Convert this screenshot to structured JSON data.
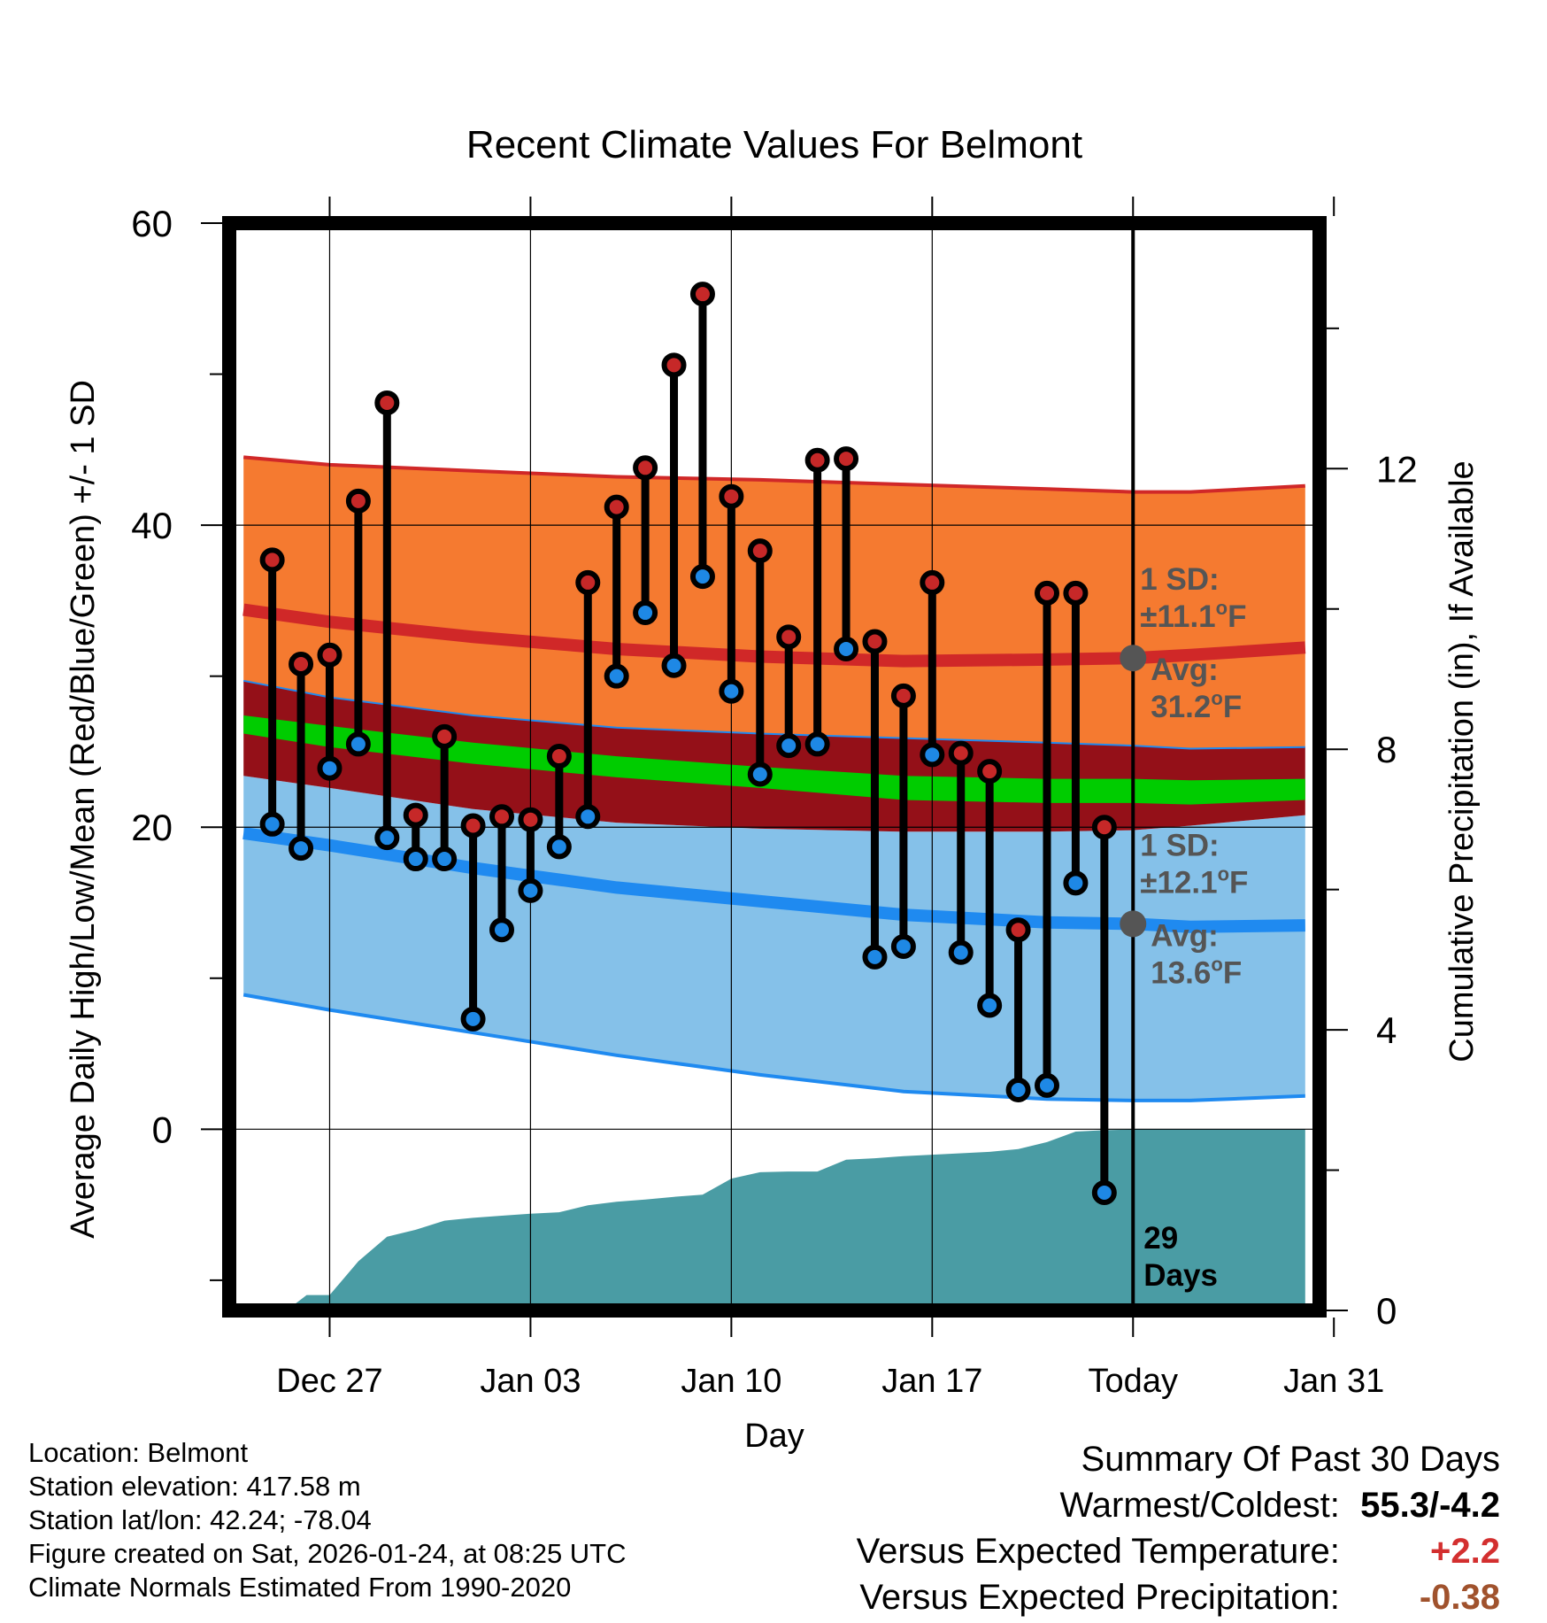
{
  "chart_data": {
    "type": "line",
    "title": "Recent Climate Values For Belmont",
    "xlabel": "Day",
    "ylabel": "Average Daily High/Low/Mean (Red/Blue/Green) +/- 1 SD",
    "y2label": "Cumulative Precipitation (in), If Available",
    "xlim": [
      -3.5,
      34.5
    ],
    "ylim": [
      -12,
      60
    ],
    "y2lim": [
      0,
      15.5
    ],
    "x_ticks": [
      {
        "x": 0,
        "label": "Dec 27"
      },
      {
        "x": 7,
        "label": "Jan 03"
      },
      {
        "x": 14,
        "label": "Jan 10"
      },
      {
        "x": 21,
        "label": "Jan 17"
      },
      {
        "x": 28,
        "label": "Today"
      },
      {
        "x": 35,
        "label": "Jan 31"
      }
    ],
    "y_ticks": [
      0,
      20,
      40,
      60
    ],
    "y2_ticks": [
      0,
      4,
      8,
      12
    ],
    "today_x": 28,
    "grid": true,
    "observed_days": [
      {
        "x": -2,
        "high": 37.7,
        "low": 20.2
      },
      {
        "x": -1,
        "high": 30.8,
        "low": 18.6
      },
      {
        "x": 0,
        "high": 31.4,
        "low": 23.9
      },
      {
        "x": 1,
        "high": 41.6,
        "low": 25.5
      },
      {
        "x": 2,
        "high": 48.1,
        "low": 19.3
      },
      {
        "x": 3,
        "high": 20.8,
        "low": 17.9
      },
      {
        "x": 4,
        "high": 26.0,
        "low": 17.9
      },
      {
        "x": 5,
        "high": 20.1,
        "low": 7.3
      },
      {
        "x": 6,
        "high": 20.7,
        "low": 13.2
      },
      {
        "x": 7,
        "high": 20.5,
        "low": 15.8
      },
      {
        "x": 8,
        "high": 24.7,
        "low": 18.7
      },
      {
        "x": 9,
        "high": 36.2,
        "low": 20.7
      },
      {
        "x": 10,
        "high": 41.2,
        "low": 30.0
      },
      {
        "x": 11,
        "high": 43.8,
        "low": 34.2
      },
      {
        "x": 12,
        "high": 50.6,
        "low": 30.7
      },
      {
        "x": 13,
        "high": 55.3,
        "low": 36.6
      },
      {
        "x": 14,
        "high": 41.9,
        "low": 29.0
      },
      {
        "x": 15,
        "high": 38.3,
        "low": 23.5
      },
      {
        "x": 16,
        "high": 32.6,
        "low": 25.4
      },
      {
        "x": 17,
        "high": 44.3,
        "low": 25.5
      },
      {
        "x": 18,
        "high": 44.4,
        "low": 31.8
      },
      {
        "x": 19,
        "high": 32.3,
        "low": 11.4
      },
      {
        "x": 20,
        "high": 28.7,
        "low": 12.1
      },
      {
        "x": 21,
        "high": 36.2,
        "low": 24.8
      },
      {
        "x": 22,
        "high": 24.9,
        "low": 11.7
      },
      {
        "x": 23,
        "high": 23.7,
        "low": 8.2
      },
      {
        "x": 24,
        "high": 13.2,
        "low": 2.6
      },
      {
        "x": 25,
        "high": 35.5,
        "low": 2.9
      },
      {
        "x": 26,
        "high": 35.5,
        "low": 16.3
      },
      {
        "x": 27,
        "high": 20.0,
        "low": -4.2
      }
    ],
    "normals": {
      "x": [
        -3,
        0,
        5,
        10,
        15,
        20,
        25,
        28,
        30,
        34
      ],
      "high_mean": [
        34.4,
        33.6,
        32.6,
        31.8,
        31.3,
        31.0,
        31.1,
        31.2,
        31.4,
        31.9
      ],
      "high_upper": [
        44.5,
        44.0,
        43.6,
        43.2,
        43.0,
        42.7,
        42.4,
        42.2,
        42.2,
        42.6
      ],
      "high_lower": [
        29.7,
        28.6,
        27.4,
        26.6,
        26.2,
        25.9,
        25.6,
        25.4,
        25.2,
        25.3
      ],
      "mean_mean": [
        26.8,
        26.0,
        24.9,
        24.0,
        23.3,
        22.6,
        22.4,
        22.4,
        22.3,
        22.5
      ],
      "mean_upper": [
        27.4,
        26.7,
        25.6,
        24.7,
        24.0,
        23.4,
        23.2,
        23.2,
        23.1,
        23.2
      ],
      "mean_lower": [
        26.2,
        25.3,
        24.2,
        23.3,
        22.6,
        21.8,
        21.6,
        21.6,
        21.5,
        21.8
      ],
      "low_mean": [
        19.6,
        18.8,
        17.3,
        16.0,
        15.1,
        14.2,
        13.7,
        13.6,
        13.4,
        13.5
      ],
      "low_upper": [
        23.4,
        22.6,
        21.2,
        20.3,
        19.9,
        19.7,
        19.7,
        19.8,
        20.1,
        20.8
      ],
      "low_lower": [
        8.9,
        7.9,
        6.4,
        4.9,
        3.6,
        2.5,
        2.0,
        1.9,
        1.9,
        2.2
      ]
    },
    "precipitation": {
      "x": [
        -3,
        -1.5,
        -0.8,
        0,
        1,
        2,
        3,
        4,
        5,
        6,
        7,
        8,
        9,
        10,
        11,
        12,
        13,
        14,
        15,
        16,
        17,
        18,
        19,
        20,
        21,
        22,
        23,
        24,
        25,
        26,
        27,
        28,
        34
      ],
      "cumulative": [
        0.0,
        0.0,
        0.22,
        0.22,
        0.7,
        1.05,
        1.15,
        1.28,
        1.32,
        1.35,
        1.38,
        1.4,
        1.5,
        1.55,
        1.58,
        1.62,
        1.65,
        1.88,
        1.97,
        1.98,
        1.98,
        2.15,
        2.17,
        2.2,
        2.22,
        2.24,
        2.26,
        2.3,
        2.4,
        2.55,
        2.57,
        2.58,
        2.58
      ]
    },
    "annotations": {
      "high_sd_label": "1 SD:",
      "high_sd_value": "±11.1",
      "high_sd_unit": "F",
      "high_avg_label": "Avg:",
      "high_avg_value": "31.2",
      "high_avg_unit": "F",
      "low_sd_label": "1 SD:",
      "low_sd_value": "±12.1",
      "low_sd_unit": "F",
      "low_avg_label": "Avg:",
      "low_avg_value": "13.6",
      "low_avg_unit": "F",
      "degree_symbol": "o",
      "days_count": "29",
      "days_label": "Days"
    },
    "colors": {
      "high_band": "#f57a30",
      "high_line": "#d02828",
      "mean_band": "#941018",
      "mean_line": "#00cc00",
      "low_band": "#85c1e9",
      "low_line": "#1f8af0",
      "precip": "#4a9ca4",
      "high_marker": "#c62828",
      "low_marker": "#1e88e5",
      "avg_dot": "#555555",
      "annotation_text": "#555555"
    }
  },
  "info": {
    "location": "Location: Belmont",
    "elevation": "Station elevation: 417.58 m",
    "latlon": "Station lat/lon: 42.24; -78.04",
    "created": "Figure created on Sat, 2026-01-24, at 08:25 UTC",
    "normals": "Climate Normals Estimated From 1990-2020"
  },
  "summary": {
    "title": "Summary Of Past 30 Days",
    "warmest_coldest_label": "Warmest/Coldest:",
    "warmest_coldest_value": "55.3/-4.2",
    "temp_label": "Versus Expected Temperature:",
    "temp_value": "+2.2",
    "temp_color": "#d32f2f",
    "precip_label": "Versus Expected Precipitation:",
    "precip_value": "-0.38",
    "precip_color": "#a0522d"
  }
}
